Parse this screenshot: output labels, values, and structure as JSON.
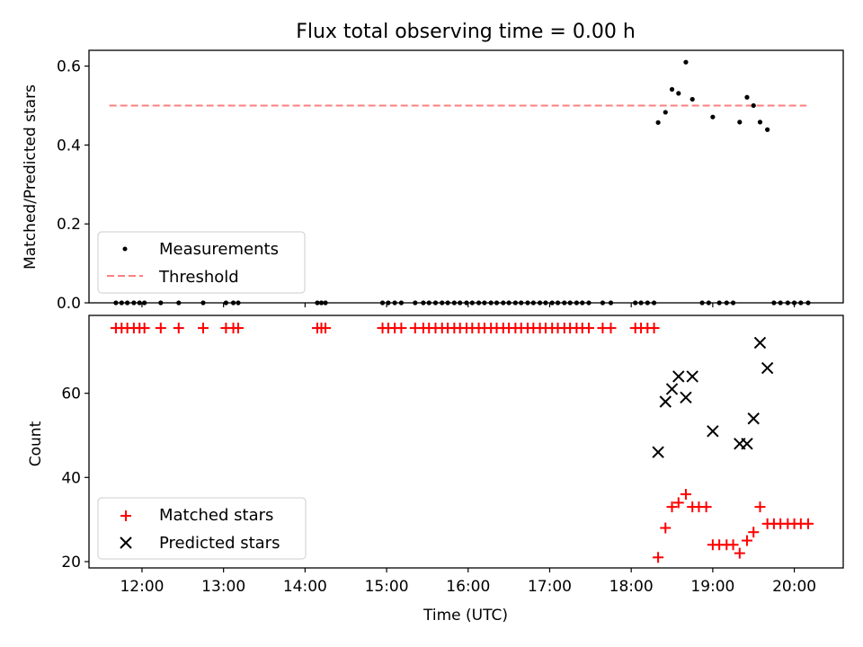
{
  "chart_data": [
    {
      "type": "scatter",
      "title": "Flux total observing time = 0.00 h",
      "xlabel": "",
      "ylabel": "Matched/Predicted stars",
      "ylim": [
        0,
        0.64
      ],
      "yticks": [
        "0.0",
        "0.2",
        "0.4",
        "0.6"
      ],
      "xlim_hours": [
        11.35,
        20.6
      ],
      "legend_position": "lower-left",
      "series": [
        {
          "name": "Measurements",
          "kind": "scatter",
          "color": "#000000",
          "points": [
            [
              11.68,
              0
            ],
            [
              11.75,
              0
            ],
            [
              11.82,
              0
            ],
            [
              11.9,
              0
            ],
            [
              11.97,
              0
            ],
            [
              12.03,
              0
            ],
            [
              12.23,
              0
            ],
            [
              12.45,
              0
            ],
            [
              12.75,
              0
            ],
            [
              13.03,
              0
            ],
            [
              13.12,
              0
            ],
            [
              13.18,
              0
            ],
            [
              14.15,
              0
            ],
            [
              14.2,
              0
            ],
            [
              14.25,
              0
            ],
            [
              14.95,
              0
            ],
            [
              15.02,
              0
            ],
            [
              15.1,
              0
            ],
            [
              15.18,
              0
            ],
            [
              15.35,
              0
            ],
            [
              15.45,
              0
            ],
            [
              15.52,
              0
            ],
            [
              15.6,
              0
            ],
            [
              15.68,
              0
            ],
            [
              15.75,
              0
            ],
            [
              15.83,
              0
            ],
            [
              15.9,
              0
            ],
            [
              15.98,
              0
            ],
            [
              16.05,
              0
            ],
            [
              16.13,
              0
            ],
            [
              16.2,
              0
            ],
            [
              16.28,
              0
            ],
            [
              16.35,
              0
            ],
            [
              16.43,
              0
            ],
            [
              16.5,
              0
            ],
            [
              16.58,
              0
            ],
            [
              16.65,
              0
            ],
            [
              16.73,
              0
            ],
            [
              16.8,
              0
            ],
            [
              16.88,
              0
            ],
            [
              16.95,
              0
            ],
            [
              17.03,
              0
            ],
            [
              17.1,
              0
            ],
            [
              17.18,
              0
            ],
            [
              17.25,
              0
            ],
            [
              17.33,
              0
            ],
            [
              17.4,
              0
            ],
            [
              17.48,
              0
            ],
            [
              17.65,
              0
            ],
            [
              17.75,
              0
            ],
            [
              18.05,
              0
            ],
            [
              18.12,
              0
            ],
            [
              18.2,
              0
            ],
            [
              18.28,
              0
            ],
            [
              18.33,
              0.457
            ],
            [
              18.42,
              0.483
            ],
            [
              18.5,
              0.541
            ],
            [
              18.58,
              0.531
            ],
            [
              18.67,
              0.61
            ],
            [
              18.75,
              0.516
            ],
            [
              18.87,
              0
            ],
            [
              18.95,
              0
            ],
            [
              19.0,
              0.471
            ],
            [
              19.08,
              0
            ],
            [
              19.17,
              0
            ],
            [
              19.25,
              0
            ],
            [
              19.33,
              0.458
            ],
            [
              19.42,
              0.521
            ],
            [
              19.5,
              0.5
            ],
            [
              19.58,
              0.458
            ],
            [
              19.67,
              0.439
            ],
            [
              19.75,
              0
            ],
            [
              19.83,
              0
            ],
            [
              19.92,
              0
            ],
            [
              20.0,
              0
            ],
            [
              20.08,
              0
            ],
            [
              20.17,
              0
            ]
          ]
        },
        {
          "name": "Threshold",
          "kind": "dashed-line",
          "color": "#ff7f7f",
          "value": 0.5,
          "x_range": [
            11.6,
            20.15
          ]
        }
      ]
    },
    {
      "type": "scatter",
      "title": "",
      "xlabel": "Time (UTC)",
      "ylabel": "Count",
      "ylim": [
        18.5,
        78.5
      ],
      "yticks": [
        "20",
        "40",
        "60"
      ],
      "xlim_hours": [
        11.35,
        20.6
      ],
      "xticks": [
        "12:00",
        "13:00",
        "14:00",
        "15:00",
        "16:00",
        "17:00",
        "18:00",
        "19:00",
        "20:00"
      ],
      "legend_position": "lower-left",
      "series": [
        {
          "name": "Matched stars",
          "kind": "plus",
          "color": "#ff0000",
          "points": [
            [
              11.68,
              75.5
            ],
            [
              11.75,
              75.5
            ],
            [
              11.82,
              75.5
            ],
            [
              11.9,
              75.5
            ],
            [
              11.97,
              75.5
            ],
            [
              12.03,
              75.5
            ],
            [
              12.23,
              75.5
            ],
            [
              12.45,
              75.5
            ],
            [
              12.75,
              75.5
            ],
            [
              13.03,
              75.5
            ],
            [
              13.12,
              75.5
            ],
            [
              13.18,
              75.5
            ],
            [
              14.15,
              75.5
            ],
            [
              14.2,
              75.5
            ],
            [
              14.25,
              75.5
            ],
            [
              14.95,
              75.5
            ],
            [
              15.02,
              75.5
            ],
            [
              15.1,
              75.5
            ],
            [
              15.18,
              75.5
            ],
            [
              15.35,
              75.5
            ],
            [
              15.45,
              75.5
            ],
            [
              15.52,
              75.5
            ],
            [
              15.6,
              75.5
            ],
            [
              15.68,
              75.5
            ],
            [
              15.75,
              75.5
            ],
            [
              15.83,
              75.5
            ],
            [
              15.9,
              75.5
            ],
            [
              15.98,
              75.5
            ],
            [
              16.05,
              75.5
            ],
            [
              16.13,
              75.5
            ],
            [
              16.2,
              75.5
            ],
            [
              16.28,
              75.5
            ],
            [
              16.35,
              75.5
            ],
            [
              16.43,
              75.5
            ],
            [
              16.5,
              75.5
            ],
            [
              16.58,
              75.5
            ],
            [
              16.65,
              75.5
            ],
            [
              16.73,
              75.5
            ],
            [
              16.8,
              75.5
            ],
            [
              16.88,
              75.5
            ],
            [
              16.95,
              75.5
            ],
            [
              17.03,
              75.5
            ],
            [
              17.1,
              75.5
            ],
            [
              17.18,
              75.5
            ],
            [
              17.25,
              75.5
            ],
            [
              17.33,
              75.5
            ],
            [
              17.4,
              75.5
            ],
            [
              17.48,
              75.5
            ],
            [
              17.65,
              75.5
            ],
            [
              17.75,
              75.5
            ],
            [
              18.05,
              75.5
            ],
            [
              18.12,
              75.5
            ],
            [
              18.2,
              75.5
            ],
            [
              18.28,
              75.5
            ],
            [
              18.33,
              21
            ],
            [
              18.42,
              28
            ],
            [
              18.5,
              33
            ],
            [
              18.58,
              34
            ],
            [
              18.67,
              36
            ],
            [
              18.75,
              33
            ],
            [
              18.83,
              33
            ],
            [
              18.92,
              33
            ],
            [
              19.0,
              24
            ],
            [
              19.08,
              24
            ],
            [
              19.17,
              24
            ],
            [
              19.25,
              24
            ],
            [
              19.33,
              22
            ],
            [
              19.42,
              25
            ],
            [
              19.5,
              27
            ],
            [
              19.58,
              33
            ],
            [
              19.67,
              29
            ],
            [
              19.75,
              29
            ],
            [
              19.83,
              29
            ],
            [
              19.92,
              29
            ],
            [
              20.0,
              29
            ],
            [
              20.08,
              29
            ],
            [
              20.17,
              29
            ]
          ]
        },
        {
          "name": "Predicted stars",
          "kind": "x",
          "color": "#000000",
          "points": [
            [
              18.33,
              46
            ],
            [
              18.42,
              58
            ],
            [
              18.5,
              61
            ],
            [
              18.58,
              64
            ],
            [
              18.67,
              59
            ],
            [
              18.75,
              64
            ],
            [
              19.0,
              51
            ],
            [
              19.33,
              48
            ],
            [
              19.42,
              48
            ],
            [
              19.5,
              54
            ],
            [
              19.58,
              72
            ],
            [
              19.67,
              66
            ]
          ]
        }
      ]
    }
  ]
}
